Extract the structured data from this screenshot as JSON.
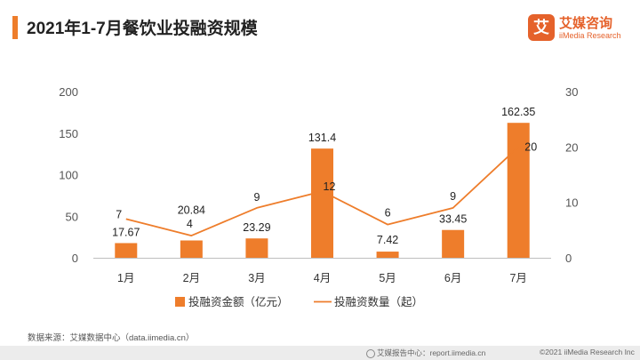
{
  "header": {
    "title": "2021年1-7月餐饮业投融资规模"
  },
  "logo": {
    "mark": "艾",
    "name_cn": "艾媒咨询",
    "name_en": "iiMedia Research"
  },
  "colors": {
    "accent": "#ee7d2b",
    "bar": "#ee7d2b",
    "line": "#ee7d2b",
    "axis_text": "#555555"
  },
  "chart_data": {
    "type": "bar",
    "title": "2021年1-7月餐饮业投融资规模",
    "categories": [
      "1月",
      "2月",
      "3月",
      "4月",
      "5月",
      "6月",
      "7月"
    ],
    "y_left": {
      "ticks": [
        "0",
        "50",
        "100",
        "150",
        "200"
      ],
      "ylim": [
        0,
        200
      ]
    },
    "y_right": {
      "ticks": [
        "0",
        "10",
        "20",
        "30"
      ],
      "ylim": [
        0,
        30
      ]
    },
    "grid": false,
    "legend_position": "bottom",
    "series": [
      {
        "name": "投融资金额（亿元）",
        "type": "bar",
        "axis": "left",
        "values": [
          17.67,
          20.84,
          23.29,
          131.4,
          7.42,
          33.45,
          162.35
        ],
        "labels": [
          "17.67",
          "20.84",
          "23.29",
          "131.4",
          "7.42",
          "33.45",
          "162.35"
        ]
      },
      {
        "name": "投融资数量（起）",
        "type": "line",
        "axis": "right",
        "values": [
          7,
          4,
          9,
          12,
          6,
          9,
          20
        ],
        "labels": [
          "7",
          "4",
          "9",
          "12",
          "6",
          "9",
          "20"
        ]
      }
    ]
  },
  "footer": {
    "source": "数据来源：艾媒数据中心（data.iimedia.cn）",
    "report": "艾媒报告中心：report.iimedia.cn",
    "copyright": "©2021  iiMedia Research  Inc"
  }
}
